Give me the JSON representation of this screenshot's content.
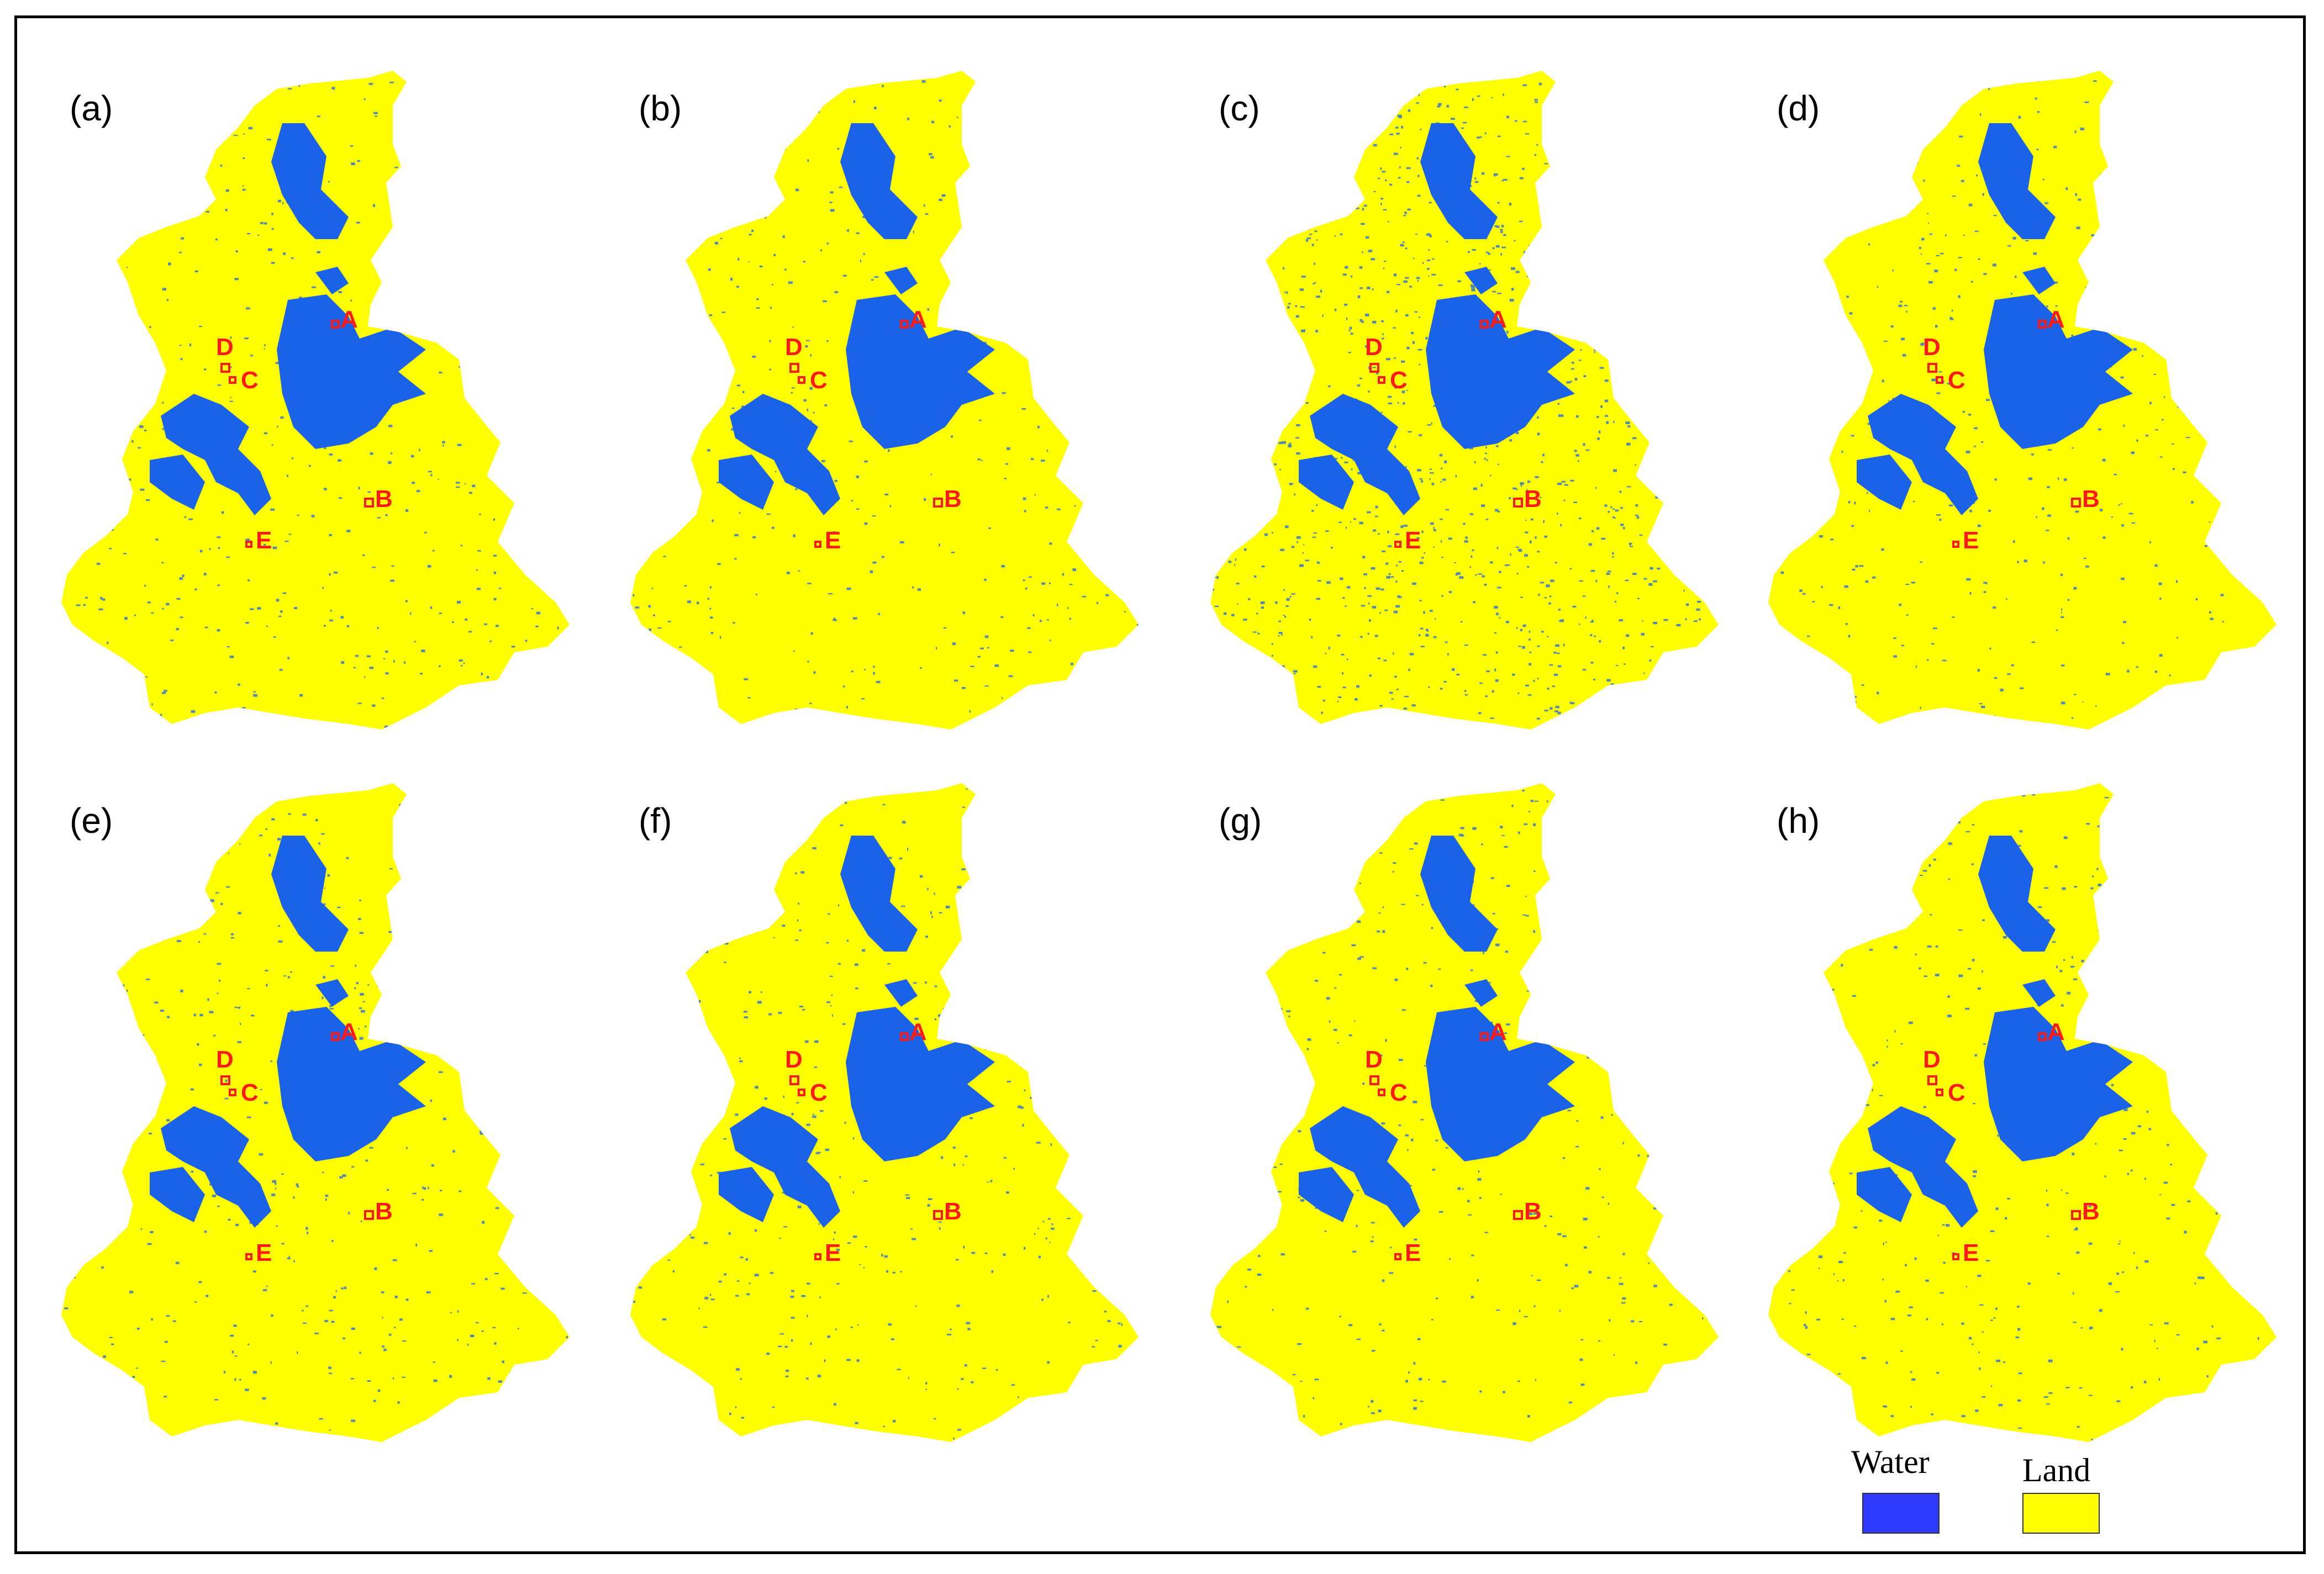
{
  "colors": {
    "water": "#1a63e8",
    "land": "#ffff00",
    "marker": "#ff1a1a",
    "legend_water": "#2f3aff"
  },
  "panels": [
    {
      "label": "(a)"
    },
    {
      "label": "(b)"
    },
    {
      "label": "(c)"
    },
    {
      "label": "(d)"
    },
    {
      "label": "(e)"
    },
    {
      "label": "(f)"
    },
    {
      "label": "(g)"
    },
    {
      "label": "(h)"
    }
  ],
  "markers": [
    {
      "label": "A"
    },
    {
      "label": "B"
    },
    {
      "label": "C"
    },
    {
      "label": "D"
    },
    {
      "label": "E"
    }
  ],
  "legend": {
    "water_label": "Water",
    "land_label": "Land"
  }
}
